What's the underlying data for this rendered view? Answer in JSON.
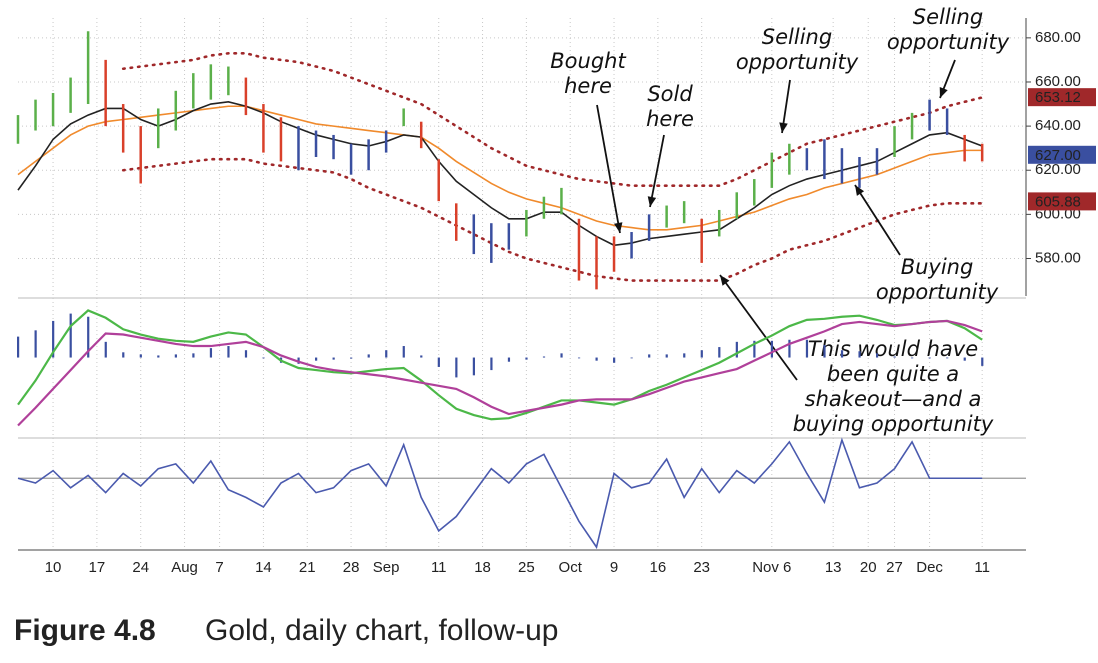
{
  "chart_data": [
    {
      "type": "range",
      "x": [
        0,
        2,
        4,
        6,
        8,
        10,
        12,
        14,
        16,
        18,
        20,
        22,
        24,
        26,
        28,
        30,
        32,
        34,
        36,
        38,
        40,
        42,
        44,
        46,
        48,
        50,
        52,
        54,
        56,
        58,
        60,
        62,
        64,
        66,
        68,
        70,
        72,
        74,
        76,
        78,
        80,
        82,
        84,
        86,
        88,
        90,
        92,
        94,
        96,
        98,
        100,
        102,
        104,
        106,
        108,
        110
      ],
      "xlim": [
        0,
        115
      ],
      "xticks": [
        {
          "value": 4,
          "label": "10"
        },
        {
          "value": 9,
          "label": "17"
        },
        {
          "value": 14,
          "label": "24"
        },
        {
          "value": 19,
          "label": "Aug"
        },
        {
          "value": 23,
          "label": "7"
        },
        {
          "value": 28,
          "label": "14"
        },
        {
          "value": 33,
          "label": "21"
        },
        {
          "value": 38,
          "label": "28"
        },
        {
          "value": 42,
          "label": "Sep"
        },
        {
          "value": 48,
          "label": "11"
        },
        {
          "value": 53,
          "label": "18"
        },
        {
          "value": 58,
          "label": "25"
        },
        {
          "value": 63,
          "label": "Oct"
        },
        {
          "value": 68,
          "label": "9"
        },
        {
          "value": 73,
          "label": "16"
        },
        {
          "value": 78,
          "label": "23"
        },
        {
          "value": 86,
          "label": "Nov 6"
        },
        {
          "value": 93,
          "label": "13"
        },
        {
          "value": 97,
          "label": "20"
        },
        {
          "value": 100,
          "label": "27"
        },
        {
          "value": 104,
          "label": "Dec"
        },
        {
          "value": 110,
          "label": "11"
        }
      ],
      "ylim": [
        563,
        689
      ],
      "yticks": [
        {
          "value": 580,
          "label": "580.00"
        },
        {
          "value": 600,
          "label": "600.00"
        },
        {
          "value": 620,
          "label": "620.00"
        },
        {
          "value": 640,
          "label": "640.00"
        },
        {
          "value": 660,
          "label": "660.00"
        },
        {
          "value": 680,
          "label": "680.00"
        }
      ],
      "grid": true,
      "high": [
        645,
        652,
        655,
        662,
        683,
        670,
        650,
        640,
        648,
        656,
        664,
        668,
        667,
        662,
        650,
        644,
        640,
        638,
        636,
        632,
        634,
        638,
        648,
        642,
        625,
        605,
        600,
        596,
        596,
        602,
        608,
        612,
        598,
        590,
        590,
        592,
        600,
        604,
        606,
        598,
        602,
        610,
        616,
        628,
        632,
        630,
        634,
        630,
        626,
        630,
        640,
        646,
        652,
        648,
        636,
        632
      ],
      "low": [
        632,
        638,
        640,
        646,
        650,
        640,
        628,
        614,
        630,
        638,
        648,
        652,
        654,
        645,
        628,
        624,
        620,
        626,
        625,
        618,
        620,
        628,
        640,
        630,
        606,
        588,
        582,
        578,
        584,
        590,
        598,
        600,
        570,
        566,
        574,
        580,
        588,
        594,
        596,
        578,
        590,
        598,
        604,
        612,
        618,
        620,
        616,
        614,
        612,
        618,
        626,
        634,
        638,
        636,
        624,
        624
      ],
      "bar_colors": [
        "#5bb04a",
        "#5bb04a",
        "#5bb04a",
        "#5bb04a",
        "#5bb04a",
        "#d9402a",
        "#d9402a",
        "#d9402a",
        "#5bb04a",
        "#5bb04a",
        "#5bb04a",
        "#5bb04a",
        "#5bb04a",
        "#d9402a",
        "#d9402a",
        "#d9402a",
        "#3a4fa0",
        "#3a4fa0",
        "#3a4fa0",
        "#3a4fa0",
        "#3a4fa0",
        "#3a4fa0",
        "#5bb04a",
        "#d9402a",
        "#d9402a",
        "#d9402a",
        "#3a4fa0",
        "#3a4fa0",
        "#3a4fa0",
        "#5bb04a",
        "#5bb04a",
        "#5bb04a",
        "#d9402a",
        "#d9402a",
        "#d9402a",
        "#3a4fa0",
        "#3a4fa0",
        "#5bb04a",
        "#5bb04a",
        "#d9402a",
        "#5bb04a",
        "#5bb04a",
        "#5bb04a",
        "#5bb04a",
        "#5bb04a",
        "#3a4fa0",
        "#3a4fa0",
        "#3a4fa0",
        "#3a4fa0",
        "#3a4fa0",
        "#5bb04a",
        "#5bb04a",
        "#3a4fa0",
        "#3a4fa0",
        "#d9402a",
        "#d9402a"
      ],
      "series": [
        {
          "color": "#f08a2c",
          "style": "solid",
          "values": [
            618,
            624,
            630,
            636,
            640,
            642,
            643,
            644,
            645,
            646,
            647,
            648,
            649,
            649,
            647,
            645,
            643,
            641,
            640,
            639,
            638,
            637,
            636,
            635,
            630,
            624,
            619,
            614,
            610,
            607,
            605,
            603,
            600,
            597,
            595,
            594,
            593,
            593,
            594,
            595,
            597,
            599,
            601,
            604,
            607,
            609,
            612,
            614,
            616,
            618,
            621,
            624,
            627,
            628,
            629,
            629
          ]
        },
        {
          "color": "#222222",
          "style": "solid",
          "values": [
            611,
            622,
            634,
            641,
            645,
            648,
            648,
            643,
            640,
            643,
            647,
            650,
            651,
            649,
            646,
            642,
            639,
            636,
            634,
            632,
            631,
            633,
            636,
            635,
            624,
            615,
            609,
            603,
            598,
            598,
            601,
            601,
            595,
            590,
            586,
            587,
            589,
            590,
            591,
            592,
            593,
            598,
            603,
            609,
            613,
            616,
            618,
            620,
            622,
            624,
            628,
            632,
            636,
            637,
            634,
            631
          ]
        },
        {
          "color": "#a0282a",
          "style": "dotted",
          "values": [
            null,
            null,
            null,
            null,
            null,
            null,
            666,
            667,
            668,
            669,
            670,
            672,
            673,
            673,
            671,
            670,
            669,
            667,
            665,
            662,
            659,
            656,
            653,
            650,
            645,
            640,
            635,
            630,
            626,
            622,
            620,
            618,
            616,
            615,
            614,
            613,
            613,
            613,
            613,
            613,
            613,
            616,
            620,
            624,
            628,
            632,
            634,
            636,
            638,
            640,
            642,
            644,
            646,
            649,
            651,
            653
          ]
        },
        {
          "color": "#a0282a",
          "style": "dotted",
          "values": [
            null,
            null,
            null,
            null,
            null,
            null,
            620,
            621,
            622,
            623,
            624,
            625,
            625,
            625,
            623,
            622,
            621,
            620,
            619,
            616,
            612,
            609,
            606,
            603,
            599,
            595,
            591,
            587,
            583,
            580,
            578,
            576,
            574,
            572,
            571,
            570,
            570,
            570,
            570,
            570,
            570,
            573,
            577,
            580,
            584,
            586,
            588,
            591,
            594,
            597,
            600,
            602,
            604,
            605,
            605,
            605
          ]
        }
      ],
      "price_labels": [
        {
          "value": 653.12,
          "label": "653.12",
          "color": "#a0282a"
        },
        {
          "value": 627,
          "label": "627.00",
          "color": "#3a4fa0"
        },
        {
          "value": 605.88,
          "label": "605.88",
          "color": "#a0282a"
        }
      ],
      "annotations": [
        {
          "lines": [
            "Bought",
            "here"
          ]
        },
        {
          "lines": [
            "Sold",
            "here"
          ]
        },
        {
          "lines": [
            "Selling",
            "opportunity"
          ]
        },
        {
          "lines": [
            "Selling",
            "opportunity"
          ]
        },
        {
          "lines": [
            "Buying",
            "opportunity"
          ]
        },
        {
          "lines": [
            "This would have",
            "been quite a",
            "shakeout—and a",
            "buying opportunity"
          ]
        }
      ]
    },
    {
      "type": "macd",
      "x": [
        0,
        2,
        4,
        6,
        8,
        10,
        12,
        14,
        16,
        18,
        20,
        22,
        24,
        26,
        28,
        30,
        32,
        34,
        36,
        38,
        40,
        42,
        44,
        46,
        48,
        50,
        52,
        54,
        56,
        58,
        60,
        62,
        64,
        66,
        68,
        70,
        72,
        74,
        76,
        78,
        80,
        82,
        84,
        86,
        88,
        90,
        92,
        94,
        96,
        98,
        100,
        102,
        104,
        106,
        108,
        110
      ],
      "ylim": [
        -7.5,
        5.5
      ],
      "histogram": {
        "color": "#3a4fa0",
        "values": [
          2,
          2.6,
          3.5,
          4.2,
          3.9,
          1.5,
          0.5,
          0.3,
          0.2,
          0.3,
          0.4,
          0.9,
          1.1,
          0.7,
          0,
          -0.5,
          -0.6,
          -0.3,
          -0.2,
          -0.1,
          0.3,
          0.7,
          1.1,
          0.2,
          -0.9,
          -1.9,
          -1.7,
          -1.2,
          -0.4,
          -0.2,
          0.1,
          0.4,
          0,
          -0.3,
          -0.5,
          0,
          0.3,
          0.3,
          0.4,
          0.7,
          1,
          1.5,
          1.6,
          1.6,
          1.7,
          1.7,
          1.2,
          0.7,
          0.6,
          0.4,
          0.1,
          0,
          0,
          0,
          -0.3,
          -0.8
        ]
      },
      "series": [
        {
          "color": "#4cb848",
          "values": [
            -4.5,
            -2.2,
            0.5,
            3,
            4.5,
            3.8,
            2.7,
            2.2,
            1.8,
            1.6,
            1.5,
            2,
            2.4,
            2.2,
            1,
            -0.3,
            -1,
            -1.2,
            -1.4,
            -1.5,
            -1.3,
            -1.1,
            -1,
            -2.2,
            -3.6,
            -4.9,
            -5.5,
            -5.9,
            -5.8,
            -5.3,
            -4.7,
            -4.1,
            -4.1,
            -4.3,
            -4.5,
            -4,
            -3.2,
            -2.6,
            -1.9,
            -1.2,
            -0.5,
            0.4,
            1.3,
            2.1,
            3,
            3.6,
            3.7,
            3.9,
            4,
            3.6,
            3.1,
            3.2,
            3.4,
            3.5,
            2.8,
            1.7
          ]
        },
        {
          "color": "#b0409a",
          "values": [
            -6.5,
            -4.8,
            -3,
            -1.2,
            0.6,
            2.3,
            2.2,
            1.9,
            1.6,
            1.3,
            1.1,
            1.1,
            1.3,
            1.5,
            1,
            0.2,
            -0.4,
            -0.9,
            -1.2,
            -1.4,
            -1.6,
            -1.8,
            -2.1,
            -2.4,
            -2.7,
            -3,
            -3.8,
            -4.7,
            -5.4,
            -5.1,
            -4.8,
            -4.5,
            -4.1,
            -4,
            -4,
            -4,
            -3.5,
            -2.9,
            -2.3,
            -1.9,
            -1.5,
            -1.1,
            -0.3,
            0.5,
            1.3,
            1.9,
            2.5,
            3.2,
            3.4,
            3.2,
            3,
            3.2,
            3.4,
            3.5,
            3.1,
            2.5
          ]
        }
      ]
    },
    {
      "type": "line",
      "x": [
        0,
        2,
        4,
        6,
        8,
        10,
        12,
        14,
        16,
        18,
        20,
        22,
        24,
        26,
        28,
        30,
        32,
        34,
        36,
        38,
        40,
        42,
        44,
        46,
        48,
        50,
        52,
        54,
        56,
        58,
        60,
        62,
        64,
        66,
        68,
        70,
        72,
        74,
        76,
        78,
        80,
        82,
        84,
        86,
        88,
        90,
        92,
        94,
        96,
        98,
        100,
        102,
        104,
        106,
        108,
        110
      ],
      "ylim": [
        -75,
        40
      ],
      "series": [
        {
          "color": "#4a5aae",
          "values": [
            0,
            -5,
            8,
            -10,
            3,
            -15,
            5,
            -8,
            10,
            15,
            -5,
            18,
            -12,
            -20,
            -30,
            -5,
            5,
            -15,
            -10,
            8,
            15,
            -8,
            35,
            -20,
            -55,
            -40,
            -15,
            10,
            -5,
            15,
            25,
            -10,
            -45,
            -72,
            5,
            -10,
            -5,
            20,
            -20,
            10,
            -15,
            8,
            -5,
            15,
            38,
            5,
            -25,
            40,
            -10,
            -5,
            10,
            38,
            0,
            0,
            0,
            0
          ]
        }
      ]
    },
    {
      "type": "caption",
      "label": "Figure 4.8",
      "text": "Gold, daily chart, follow-up"
    }
  ]
}
